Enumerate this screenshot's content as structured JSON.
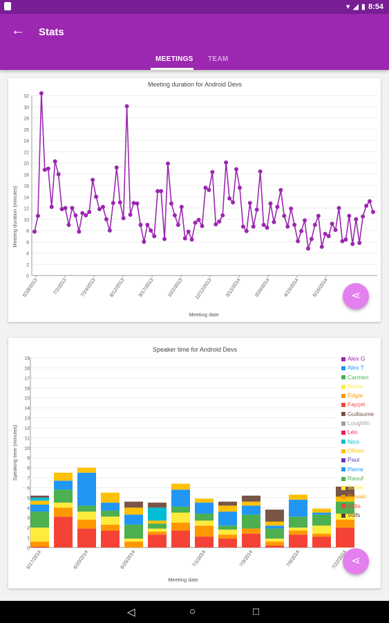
{
  "status_bar": {
    "time": "8:54"
  },
  "app_bar": {
    "title": "Stats",
    "tabs": [
      {
        "label": "MEETINGS"
      },
      {
        "label": "TEAM"
      }
    ]
  },
  "colors": {
    "primary": "#9c27b0",
    "status": "#7a1e95",
    "fab": "#e47ff0",
    "line": "#9b27b0"
  },
  "icons": {
    "back": "arrow-back-icon",
    "share": "share-icon"
  },
  "nav_bar": {
    "back": "◁",
    "home": "○",
    "recents": "□"
  },
  "chart_data": [
    {
      "type": "line",
      "title": "Meeting duration for Android Devs",
      "xlabel": "Meeting date",
      "ylabel": "Meeting duration (minutes)",
      "ylim": [
        0,
        32
      ],
      "yticks": [
        0,
        2,
        4,
        6,
        8,
        10,
        12,
        14,
        16,
        18,
        20,
        22,
        24,
        26,
        28,
        30,
        32
      ],
      "grid": true,
      "xticklabels": [
        "6/18/2013",
        "7/2/2013",
        "7/24/2013",
        "8/12/2013",
        "9/17/2013",
        "10/2/2013",
        "12/12/2013",
        "3/12/2014",
        "3/26/2014",
        "4/15/2014",
        "5/16/2014"
      ],
      "series": [
        {
          "values": [
            7.8,
            10.6,
            32.4,
            18.8,
            19.0,
            12.2,
            20.3,
            18.0,
            11.8,
            12.0,
            9.0,
            12.0,
            10.7,
            7.8,
            11.1,
            10.7,
            11.3,
            17.0,
            14.0,
            11.8,
            12.2,
            10.0,
            8.0,
            12.9,
            19.2,
            13.0,
            10.2,
            30.1,
            10.8,
            12.9,
            12.8,
            9.0,
            6.0,
            9.0,
            8.0,
            7.0,
            15.0,
            15.0,
            6.5,
            19.9,
            12.8,
            10.7,
            9.0,
            12.2,
            6.6,
            7.8,
            6.4,
            9.4,
            9.9,
            8.8,
            15.6,
            15.2,
            18.4,
            9.1,
            9.6,
            10.7,
            20.1,
            13.7,
            13.0,
            18.9,
            15.6,
            8.7,
            7.9,
            12.9,
            8.7,
            11.7,
            18.5,
            9.0,
            8.5,
            12.8,
            9.5,
            12.2,
            15.2,
            10.6,
            8.7,
            11.9,
            9.0,
            6.1,
            7.9,
            9.8,
            4.8,
            6.5,
            9.0,
            10.6,
            5.1,
            7.4,
            7.0,
            9.2,
            8.1,
            12.0,
            6.1,
            6.4,
            10.6,
            5.6,
            10.0,
            5.8,
            10.5,
            12.4,
            13.2,
            11.3
          ]
        }
      ]
    },
    {
      "type": "bar",
      "stacked": true,
      "title": "Speaker time for Android Devs",
      "xlabel": "Meeting date",
      "ylabel": "Speaking time (minutes)",
      "ylim": [
        0,
        19
      ],
      "yticks": [
        0,
        1,
        2,
        3,
        4,
        5,
        6,
        7,
        8,
        9,
        10,
        11,
        12,
        13,
        14,
        15,
        16,
        17,
        18,
        19
      ],
      "grid": true,
      "legend_position": "right",
      "categories": [
        "6/17/2014",
        "",
        "6/20/2014",
        "",
        "6/25/2014",
        "",
        "",
        "7/1/2014",
        "",
        "7/3/2014",
        "",
        "7/9/2014",
        "",
        "7/22/2014"
      ],
      "series": [
        {
          "name": "Alex G",
          "color": "#9c27b0",
          "values": [
            0,
            0,
            0,
            0,
            0,
            0,
            0,
            0,
            0,
            0,
            0,
            0,
            0,
            0
          ]
        },
        {
          "name": "Alex T",
          "color": "#2196f3",
          "values": [
            0,
            0,
            0,
            0,
            0,
            0,
            0,
            0,
            0,
            0,
            0,
            0,
            0,
            0
          ]
        },
        {
          "name": "Carmen",
          "color": "#4caf50",
          "values": [
            0,
            0,
            0,
            0,
            0,
            0,
            0,
            0,
            0,
            0,
            0,
            0,
            0,
            0
          ]
        },
        {
          "name": "Denis",
          "color": "#ffeb3b",
          "values": [
            0,
            0,
            0,
            0,
            0,
            0,
            0,
            0,
            0,
            0,
            0,
            0,
            0,
            0
          ]
        },
        {
          "name": "Edgar",
          "color": "#ff9800",
          "values": [
            0,
            0,
            0,
            0,
            0,
            0,
            0,
            0,
            0,
            0,
            0,
            0,
            0,
            0
          ]
        },
        {
          "name": "Fayçel",
          "color": "#f44336",
          "values": [
            0,
            0,
            0,
            0,
            0,
            0,
            0,
            0,
            0,
            0,
            0,
            0,
            0,
            0
          ]
        },
        {
          "name": "Guillaume",
          "color": "#795548",
          "values": [
            0.2,
            0,
            0,
            0,
            0.6,
            0.5,
            0,
            0,
            0.4,
            0.6,
            1.2,
            0,
            0,
            1.0
          ]
        },
        {
          "name": "Loughlin",
          "color": "#9e9e9e",
          "values": [
            0,
            0,
            0,
            0,
            0,
            0,
            0,
            0,
            0,
            0,
            0,
            0,
            0,
            0
          ]
        },
        {
          "name": "Léo",
          "color": "#e91e63",
          "values": [
            0,
            0,
            0,
            0,
            0,
            0,
            0,
            0,
            0,
            0,
            0,
            0,
            0,
            0
          ]
        },
        {
          "name": "Nico",
          "color": "#00bcd4",
          "values": [
            0.3,
            0,
            0,
            0,
            0,
            1.3,
            0,
            0,
            0,
            0,
            0,
            0,
            0,
            0
          ]
        },
        {
          "name": "Olivier",
          "color": "#ffc107",
          "values": [
            0.4,
            0.8,
            0.5,
            1.0,
            0.7,
            0.3,
            0.6,
            0.4,
            0.6,
            0.4,
            0.4,
            0.5,
            0.4,
            0.5
          ]
        },
        {
          "name": "Paul",
          "color": "#673ab7",
          "values": [
            0,
            0,
            0,
            0,
            0,
            0,
            0,
            0,
            0,
            0,
            0,
            0,
            0,
            0
          ]
        },
        {
          "name": "Pierre",
          "color": "#2196f3",
          "values": [
            0.7,
            0.9,
            3.3,
            0.8,
            1.0,
            0,
            1.7,
            1.1,
            1.4,
            0.9,
            0.3,
            1.7,
            0.2,
            0
          ]
        },
        {
          "name": "Raouf",
          "color": "#4caf50",
          "values": [
            1.6,
            1.3,
            0.6,
            0.6,
            1.4,
            0.5,
            0.6,
            0.7,
            0.4,
            1.4,
            1.0,
            1.1,
            1.1,
            1.2
          ]
        },
        {
          "name": "Sofan",
          "color": "#ffeb3b",
          "values": [
            1.4,
            0.5,
            0.8,
            0.8,
            0.3,
            0.3,
            1.0,
            0.5,
            0.5,
            0,
            0.3,
            0.3,
            0.8,
            0.6
          ]
        },
        {
          "name": "Sylvain",
          "color": "#ff9800",
          "values": [
            0.5,
            0.9,
            0.9,
            0.6,
            0.6,
            0.3,
            0.8,
            1.1,
            0.4,
            0.5,
            0.4,
            0.4,
            0.3,
            0.8
          ]
        },
        {
          "name": "Uldis",
          "color": "#f44336",
          "values": [
            0.1,
            3.1,
            1.9,
            1.7,
            0,
            1.3,
            1.7,
            1.1,
            0.9,
            1.4,
            0.2,
            1.3,
            1.1,
            2.0
          ]
        },
        {
          "name": "Volfs",
          "color": "#5d4037",
          "values": [
            0,
            0,
            0,
            0,
            0,
            0,
            0,
            0,
            0,
            0,
            0,
            0,
            0,
            0
          ]
        }
      ]
    }
  ]
}
